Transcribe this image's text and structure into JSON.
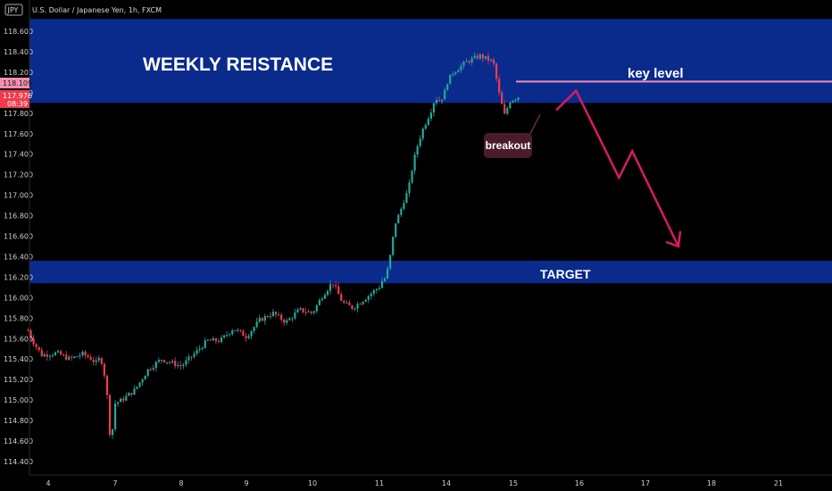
{
  "header": {
    "symbol_badge": "JPY",
    "title": "U.S. Dollar / Japanese Yen, 1h, FXCM"
  },
  "colors": {
    "background": "#000000",
    "up_candle": "#26a69a",
    "down_candle": "#ef3b4e",
    "zone_fill": "#0a2a8c",
    "key_level_line": "#f48fb1",
    "arrow": "#d81b60",
    "breakout_box": "#4a1c2a",
    "price_tag_current": "#ef3b4e",
    "price_tag_level": "#f48fb1"
  },
  "annotations": {
    "weekly_resistance": "WEEKLY REISTANCE",
    "key_level": "key level",
    "breakout": "breakout",
    "target": "TARGET"
  },
  "price_tags": {
    "key_level_price": "118.109",
    "current_price": "117.976",
    "countdown": "08:39"
  },
  "chart_data": {
    "type": "candlestick",
    "title": "U.S. Dollar / Japanese Yen, 1h, FXCM",
    "xlabel": "",
    "ylabel": "",
    "ylim": [
      114.3,
      118.72
    ],
    "y_ticks": [
      "118.600",
      "118.400",
      "118.200",
      "118.000",
      "117.800",
      "117.600",
      "117.400",
      "117.200",
      "117.000",
      "116.800",
      "116.600",
      "116.400",
      "116.200",
      "116.000",
      "115.800",
      "115.600",
      "115.400",
      "115.200",
      "115.000",
      "114.800",
      "114.600",
      "114.400"
    ],
    "y_tick_values": [
      118.6,
      118.4,
      118.2,
      118.0,
      117.8,
      117.6,
      117.4,
      117.2,
      117.0,
      116.8,
      116.6,
      116.4,
      116.2,
      116.0,
      115.8,
      115.6,
      115.4,
      115.2,
      115.0,
      114.8,
      114.6,
      114.4
    ],
    "x_ticks": [
      {
        "label": "4",
        "day": 4
      },
      {
        "label": "7",
        "day": 7
      },
      {
        "label": "8",
        "day": 8
      },
      {
        "label": "9",
        "day": 9
      },
      {
        "label": "10",
        "day": 10
      },
      {
        "label": "11",
        "day": 11
      },
      {
        "label": "14",
        "day": 14
      },
      {
        "label": "15",
        "day": 15
      },
      {
        "label": "16",
        "day": 16
      },
      {
        "label": "17",
        "day": 17
      },
      {
        "label": "18",
        "day": 18
      },
      {
        "label": "21",
        "day": 21
      }
    ],
    "zones": [
      {
        "name": "weekly_resistance",
        "y_from": 117.9,
        "y_to": 118.72
      },
      {
        "name": "target",
        "y_from": 116.14,
        "y_to": 116.36
      }
    ],
    "key_level": 118.109,
    "price_path": [
      {
        "day": 3.7,
        "price": 115.68
      },
      {
        "day": 3.75,
        "price": 115.6
      },
      {
        "day": 3.9,
        "price": 115.44
      },
      {
        "day": 4.2,
        "price": 115.46
      },
      {
        "day": 4.5,
        "price": 115.4
      },
      {
        "day": 4.8,
        "price": 115.45
      },
      {
        "day": 5.2,
        "price": 115.36
      },
      {
        "day": 5.4,
        "price": 115.42
      },
      {
        "day": 5.6,
        "price": 115.2
      },
      {
        "day": 5.7,
        "price": 114.95
      },
      {
        "day": 5.75,
        "price": 114.68
      },
      {
        "day": 5.85,
        "price": 114.7
      },
      {
        "day": 6.0,
        "price": 114.77
      },
      {
        "day": 6.1,
        "price": 114.88
      },
      {
        "day": 6.3,
        "price": 114.95
      },
      {
        "day": 6.6,
        "price": 115.0
      },
      {
        "day": 6.85,
        "price": 114.92
      },
      {
        "day": 7.1,
        "price": 115.0
      },
      {
        "day": 7.3,
        "price": 115.1
      },
      {
        "day": 7.5,
        "price": 115.3
      },
      {
        "day": 7.7,
        "price": 115.4
      },
      {
        "day": 8.0,
        "price": 115.33
      },
      {
        "day": 8.2,
        "price": 115.45
      },
      {
        "day": 8.4,
        "price": 115.58
      },
      {
        "day": 8.6,
        "price": 115.58
      },
      {
        "day": 8.8,
        "price": 115.7
      },
      {
        "day": 9.0,
        "price": 115.62
      },
      {
        "day": 9.2,
        "price": 115.78
      },
      {
        "day": 9.4,
        "price": 115.85
      },
      {
        "day": 9.6,
        "price": 115.76
      },
      {
        "day": 9.8,
        "price": 115.88
      },
      {
        "day": 10.0,
        "price": 115.85
      },
      {
        "day": 10.15,
        "price": 116.02
      },
      {
        "day": 10.3,
        "price": 116.15
      },
      {
        "day": 10.45,
        "price": 115.95
      },
      {
        "day": 10.6,
        "price": 115.9
      },
      {
        "day": 10.8,
        "price": 116.0
      },
      {
        "day": 10.95,
        "price": 116.08
      },
      {
        "day": 11.1,
        "price": 116.16
      },
      {
        "day": 11.3,
        "price": 116.2
      },
      {
        "day": 11.5,
        "price": 116.42
      },
      {
        "day": 11.7,
        "price": 116.72
      },
      {
        "day": 11.9,
        "price": 116.82
      },
      {
        "day": 12.1,
        "price": 116.95
      },
      {
        "day": 12.3,
        "price": 117.05
      },
      {
        "day": 12.5,
        "price": 117.3
      },
      {
        "day": 12.7,
        "price": 117.48
      },
      {
        "day": 12.9,
        "price": 117.62
      },
      {
        "day": 13.1,
        "price": 117.72
      },
      {
        "day": 13.3,
        "price": 117.82
      },
      {
        "day": 13.5,
        "price": 117.95
      },
      {
        "day": 13.7,
        "price": 117.92
      },
      {
        "day": 13.9,
        "price": 117.98
      },
      {
        "day": 14.1,
        "price": 118.2
      },
      {
        "day": 14.3,
        "price": 118.3
      },
      {
        "day": 14.5,
        "price": 118.36
      },
      {
        "day": 14.7,
        "price": 118.3
      },
      {
        "day": 14.8,
        "price": 117.95
      },
      {
        "day": 14.87,
        "price": 117.78
      },
      {
        "day": 14.95,
        "price": 117.92
      },
      {
        "day": 15.1,
        "price": 117.97
      }
    ],
    "projection": [
      {
        "day": 15.65,
        "price": 117.83
      },
      {
        "day": 15.95,
        "price": 118.02
      },
      {
        "day": 16.6,
        "price": 117.17
      },
      {
        "day": 16.8,
        "price": 117.43
      },
      {
        "day": 17.5,
        "price": 116.5
      }
    ]
  }
}
